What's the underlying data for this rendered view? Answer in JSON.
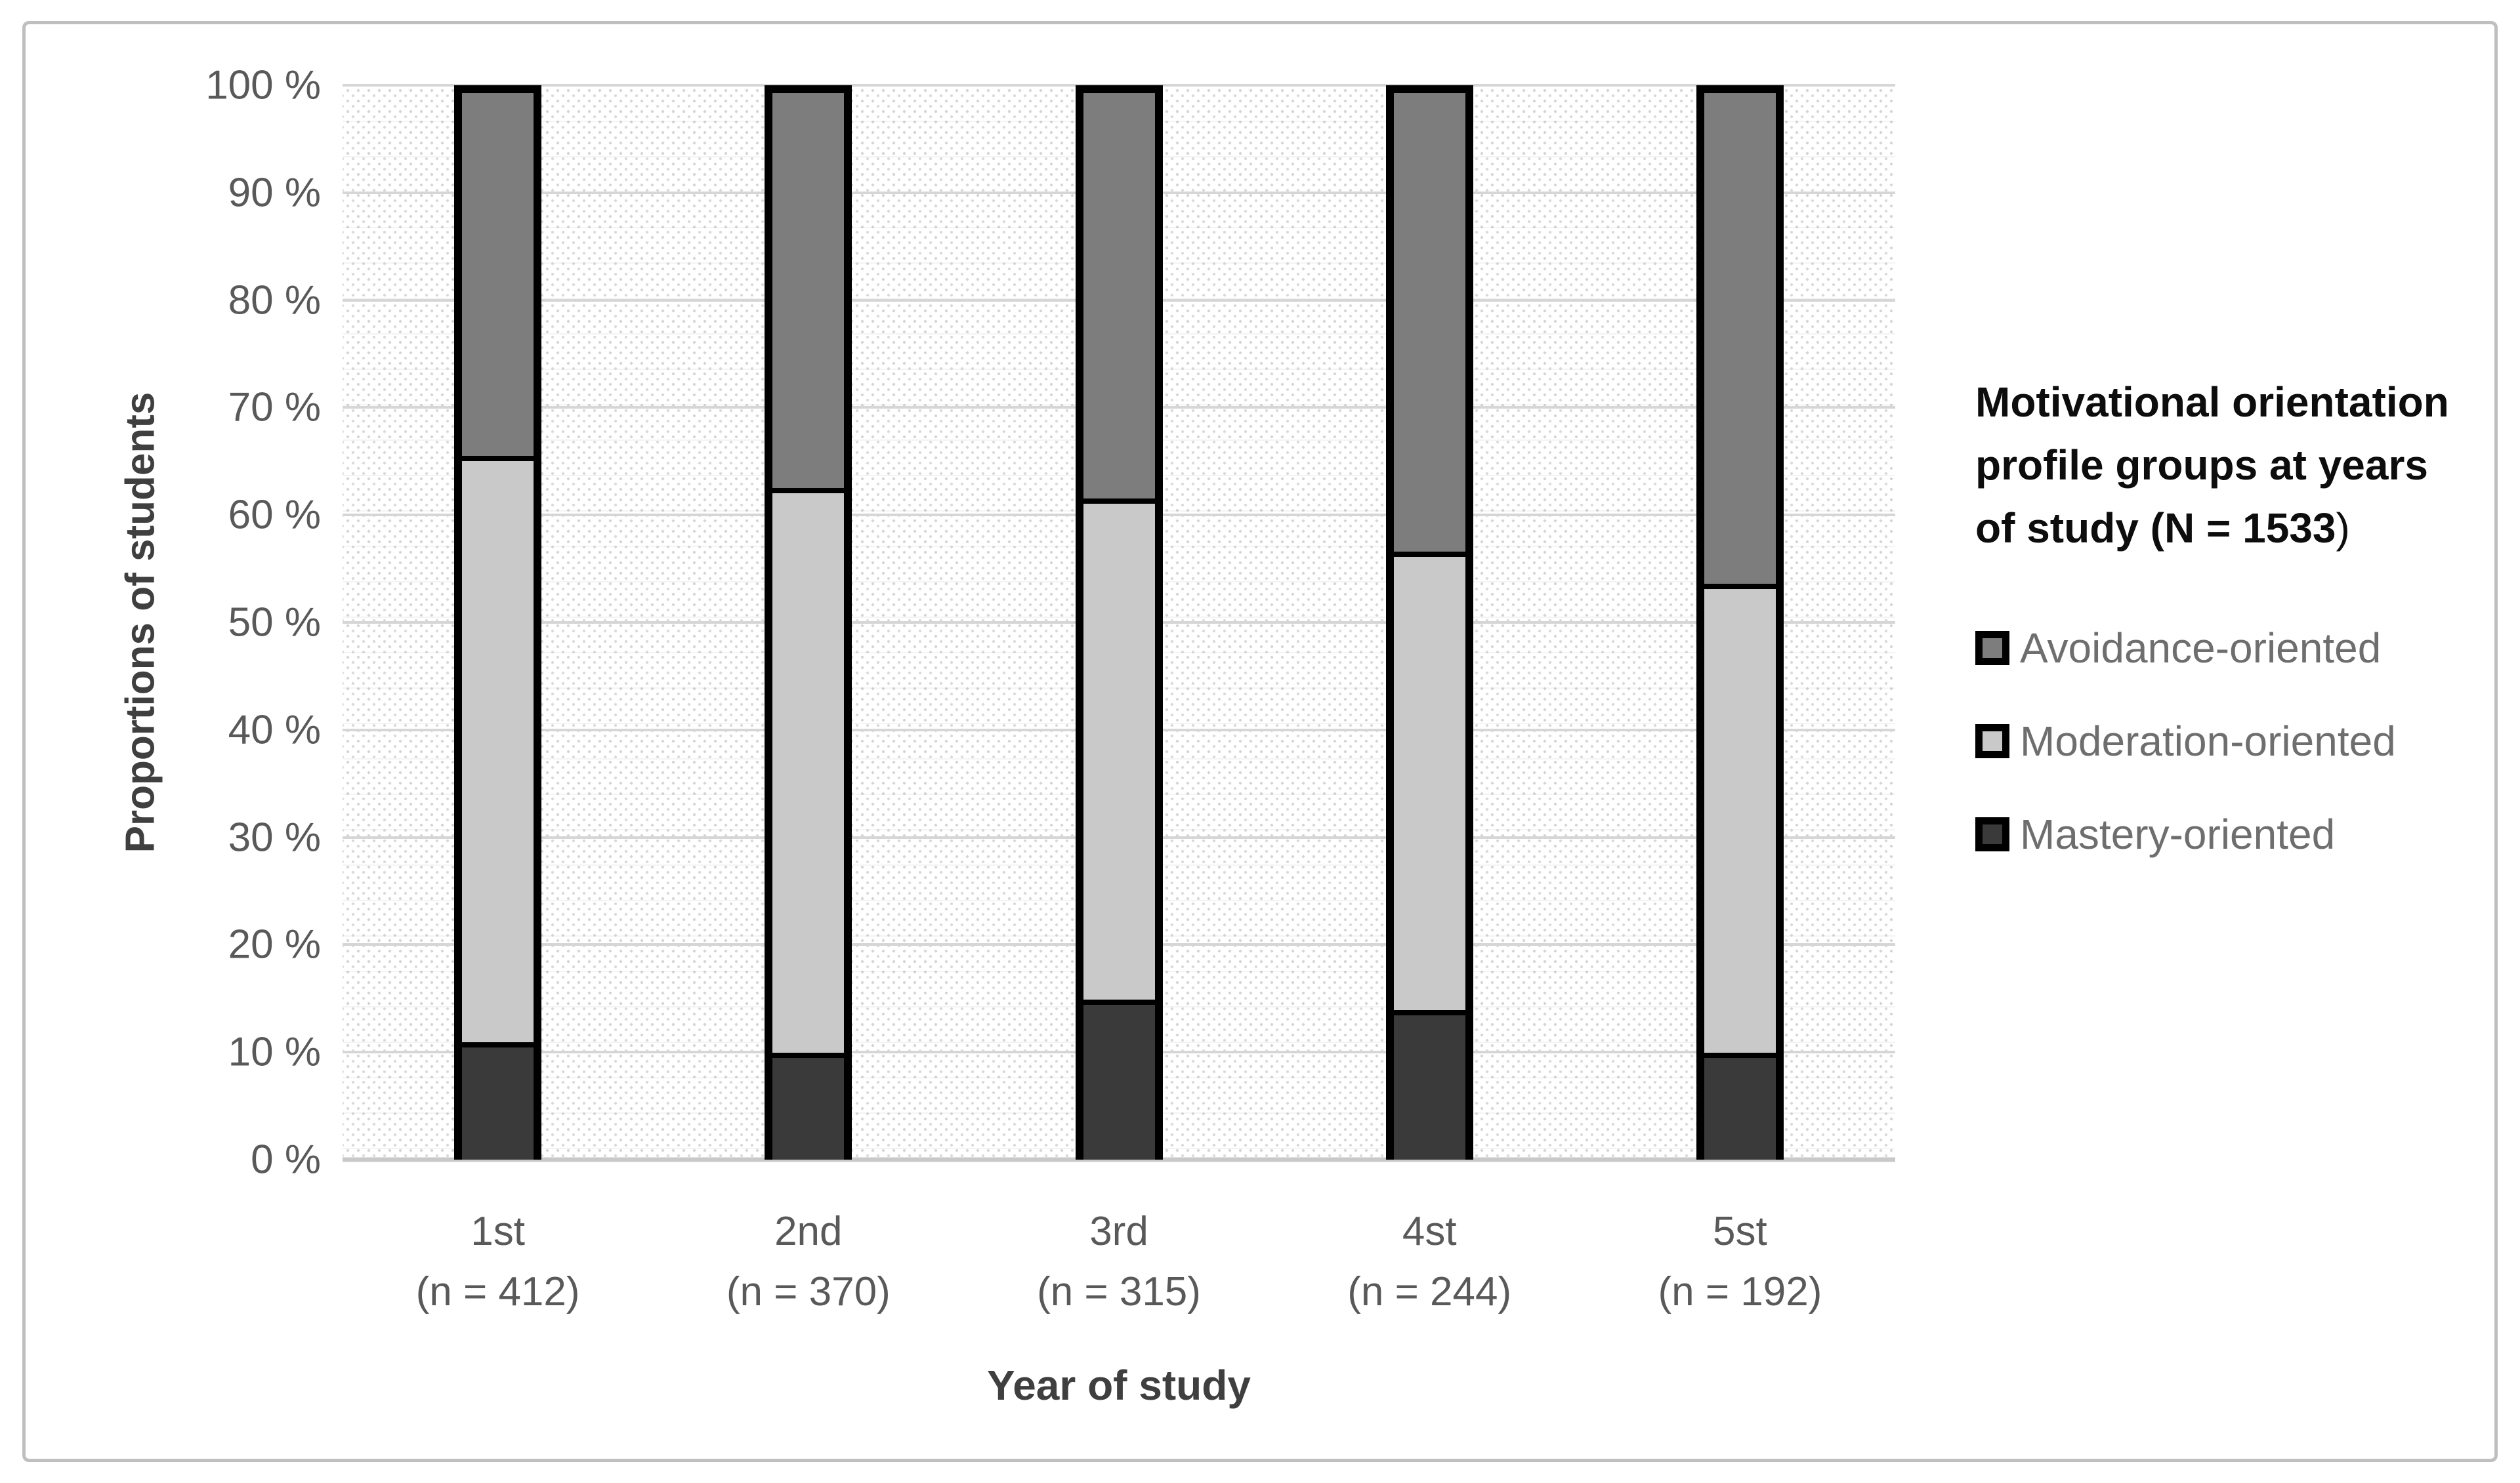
{
  "page": {
    "frame_color": "#bfbfbf",
    "gridline_color": "#d6d6d6",
    "axis_line_color": "#c9c9c9",
    "pattern_dot_color": "#d4d4d4",
    "bar_border_color": "#000000",
    "tick_text_color": "#595959",
    "axis_title_color": "#3f3f3f",
    "legend_text_color": "#6e6e6e"
  },
  "y_axis": {
    "title": "Proportions of students",
    "tick_labels": [
      "100 %",
      "90 %",
      "80 %",
      "70 %",
      "60 %",
      "50 %",
      "40 %",
      "30 %",
      "20 %",
      "10 %",
      "0 %"
    ]
  },
  "x_axis": {
    "title": "Year of study"
  },
  "legend": {
    "title_lines": [
      "Motivational orientation",
      "profile groups at years",
      "of study (N = 1533"
    ],
    "title_suffix": ")",
    "items": [
      {
        "label": "Avoidance-oriented",
        "color": "#7d7d7d"
      },
      {
        "label": "Moderation-oriented",
        "color": "#c9c9c9"
      },
      {
        "label": "Mastery-oriented",
        "color": "#3a3a3a"
      }
    ]
  },
  "chart_data": {
    "type": "bar",
    "stacked": true,
    "title": "Motivational orientation profile groups at years of study (N = 1533)",
    "xlabel": "Year of study",
    "ylabel": "Proportions of students",
    "categories": [
      "1st",
      "2nd",
      "3rd",
      "4st",
      "5st"
    ],
    "category_sublabels": [
      "(n = 412)",
      "(n = 370)",
      "(n = 315)",
      "(n = 244)",
      "(n = 192)"
    ],
    "unit": "%",
    "series": [
      {
        "name": "Mastery-oriented",
        "color": "#3a3a3a",
        "values": [
          11,
          10,
          15,
          14,
          10
        ]
      },
      {
        "name": "Moderation-oriented",
        "color": "#c9c9c9",
        "values": [
          55,
          53,
          47,
          43,
          44
        ]
      },
      {
        "name": "Avoidance-oriented",
        "color": "#7d7d7d",
        "values": [
          34,
          37,
          38,
          43,
          46
        ]
      }
    ],
    "stack_order_bottom_to_top": [
      "Mastery-oriented",
      "Moderation-oriented",
      "Avoidance-oriented"
    ],
    "ylim": [
      0,
      100
    ],
    "y_tick_step": 10,
    "grid": true,
    "plot_background": "diagonal-dot-pattern",
    "legend_position": "right"
  }
}
